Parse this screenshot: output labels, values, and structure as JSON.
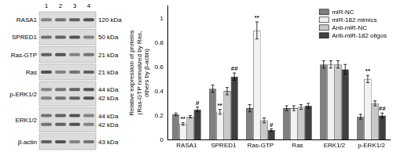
{
  "blot": {
    "lanes": [
      "1",
      "2",
      "3",
      "4"
    ],
    "rows": [
      {
        "label": "RASA1",
        "sizes": [
          "120 kDa"
        ]
      },
      {
        "label": "SPRED1",
        "sizes": [
          "50 kDa"
        ]
      },
      {
        "label": "Ras-GTP",
        "sizes": [
          "21 kDa"
        ]
      },
      {
        "label": "Ras",
        "sizes": [
          "21 kDa"
        ]
      },
      {
        "label": "p-ERK1/2",
        "sizes": [
          "44 kDa",
          "42 kDa"
        ]
      },
      {
        "label": "ERK1/2",
        "sizes": [
          "44 kDa",
          "42 kDa"
        ]
      },
      {
        "label": "β-actin",
        "sizes": [
          "43 kDa"
        ]
      }
    ]
  },
  "chart_data": {
    "type": "bar",
    "y_label": [
      "Relative expression of proteins",
      "(Ras-GTP normalized by Ras,",
      "others by β-actin)"
    ],
    "categories": [
      "RASA1",
      "SPRED1",
      "Ras-GTP",
      "Ras",
      "ERK1/2",
      "p-ERK1/2"
    ],
    "series": [
      {
        "name": "miR-NC",
        "color": "#808080",
        "values": [
          0.21,
          0.42,
          0.26,
          0.26,
          0.62,
          0.19
        ],
        "errors": [
          0.01,
          0.03,
          0.03,
          0.02,
          0.03,
          0.02
        ],
        "significance": [
          null,
          null,
          null,
          null,
          null,
          null
        ]
      },
      {
        "name": "miR-182 mimics",
        "color": "#f2f2f2",
        "values": [
          0.13,
          0.23,
          0.9,
          0.26,
          0.62,
          0.5
        ],
        "errors": [
          0.01,
          0.02,
          0.07,
          0.02,
          0.03,
          0.03
        ],
        "significance": [
          "**",
          "**",
          "**",
          null,
          null,
          "**"
        ]
      },
      {
        "name": "Anti-miR-NC",
        "color": "#c8c8c8",
        "values": [
          0.19,
          0.4,
          0.16,
          0.27,
          0.62,
          0.3
        ],
        "errors": [
          0.01,
          0.03,
          0.02,
          0.02,
          0.03,
          0.02
        ],
        "significance": [
          null,
          null,
          null,
          null,
          null,
          null
        ]
      },
      {
        "name": "Anti-miR-182 oligos",
        "color": "#404040",
        "values": [
          0.25,
          0.52,
          0.08,
          0.28,
          0.58,
          0.2
        ],
        "errors": [
          0.02,
          0.03,
          0.01,
          0.02,
          0.04,
          0.02
        ],
        "significance": [
          "#",
          "##",
          "#",
          null,
          null,
          "##"
        ]
      }
    ],
    "ylim": [
      0,
      1.1
    ],
    "yticks": [
      0,
      0.2,
      0.4,
      0.6,
      0.8,
      1
    ],
    "grid": false,
    "legend": "upper right"
  }
}
